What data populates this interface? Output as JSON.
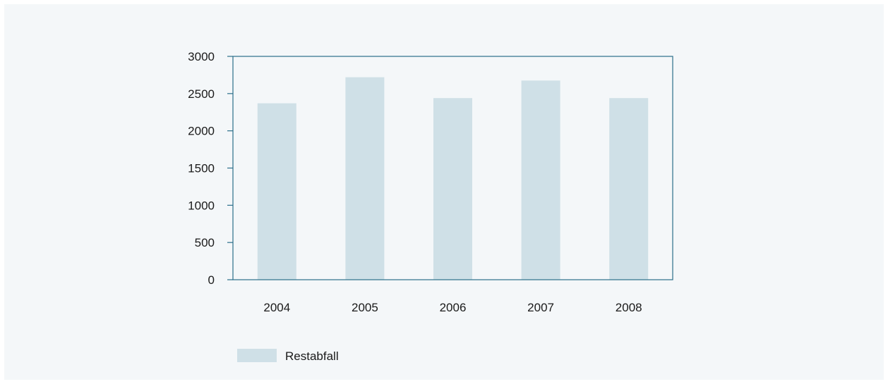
{
  "chart_data": {
    "type": "bar",
    "categories": [
      "2004",
      "2005",
      "2006",
      "2007",
      "2008"
    ],
    "series": [
      {
        "name": "Restabfall",
        "values": [
          2370,
          2720,
          2440,
          2675,
          2440
        ]
      }
    ],
    "ylim": [
      0,
      3000
    ],
    "yticks": [
      "0",
      "500",
      "1000",
      "1500",
      "2000",
      "2500",
      "3000"
    ],
    "title": "",
    "xlabel": "",
    "ylabel": "",
    "grid": false,
    "legend_position": "bottom-left",
    "colors": {
      "bar": "#cfe0e7",
      "axis": "#2b6f8a",
      "background": "#f4f7f9"
    }
  }
}
